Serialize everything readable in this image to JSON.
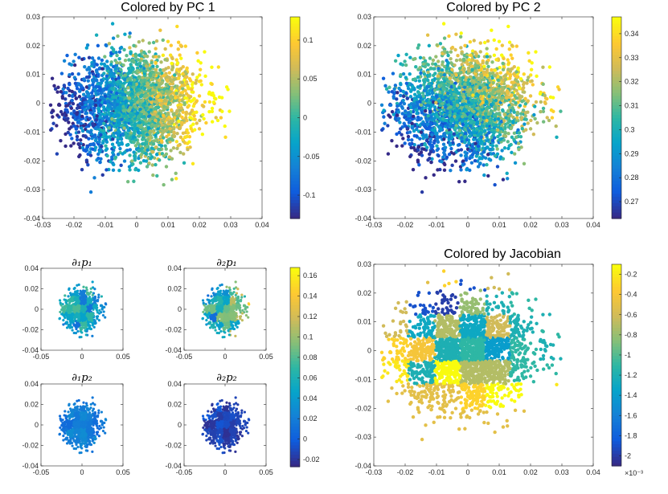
{
  "colors": {
    "parula": [
      "#352a87",
      "#0f5cdd",
      "#1481d6",
      "#06a4ca",
      "#2eb7a4",
      "#87bf77",
      "#d1bb59",
      "#fec832",
      "#f9fb0e"
    ]
  },
  "chart_data": [
    {
      "id": "pc1",
      "type": "scatter",
      "title": "Colored by PC 1",
      "xlim": [
        -0.03,
        0.04
      ],
      "ylim": [
        -0.04,
        0.03
      ],
      "xticks": [
        "-0.03",
        "-0.02",
        "-0.01",
        "0",
        "0.01",
        "0.02",
        "0.03",
        "0.04"
      ],
      "yticks": [
        "-0.04",
        "-0.03",
        "-0.02",
        "-0.01",
        "0",
        "0.01",
        "0.02",
        "0.03"
      ],
      "colorbar": {
        "clim": [
          -0.13,
          0.13
        ],
        "ticks": [
          "-0.1",
          "-0.05",
          "0",
          "0.05",
          "0.1"
        ]
      },
      "point_cloud": {
        "x_range": [
          -0.028,
          0.033
        ],
        "y_range": [
          -0.031,
          0.028
        ],
        "n_points": 2600
      },
      "coloring": "pc1"
    },
    {
      "id": "pc2",
      "type": "scatter",
      "title": "Colored by PC 2",
      "xlim": [
        -0.03,
        0.04
      ],
      "ylim": [
        -0.04,
        0.03
      ],
      "xticks": [
        "-0.03",
        "-0.02",
        "-0.01",
        "0",
        "0.01",
        "0.02",
        "0.03",
        "0.04"
      ],
      "yticks": [
        "-0.04",
        "-0.03",
        "-0.02",
        "-0.01",
        "0",
        "0.01",
        "0.02",
        "0.03"
      ],
      "colorbar": {
        "clim": [
          0.263,
          0.347
        ],
        "ticks": [
          "0.27",
          "0.28",
          "0.29",
          "0.3",
          "0.31",
          "0.32",
          "0.33",
          "0.34"
        ]
      },
      "point_cloud": {
        "x_range": [
          -0.028,
          0.033
        ],
        "y_range": [
          -0.031,
          0.028
        ],
        "n_points": 2600
      },
      "coloring": "pc2"
    },
    {
      "id": "d1p1",
      "type": "scatter",
      "title": "∂₁p₁",
      "xlim": [
        -0.05,
        0.05
      ],
      "ylim": [
        -0.04,
        0.04
      ],
      "xticks": [
        "-0.05",
        "0",
        "0.05"
      ],
      "yticks": [
        "-0.04",
        "-0.02",
        "0",
        "0.02",
        "0.04"
      ],
      "coloring": "d1p1",
      "shared_colorbar": "deriv_cb"
    },
    {
      "id": "d2p1",
      "type": "scatter",
      "title": "∂₂p₁",
      "xlim": [
        -0.05,
        0.05
      ],
      "ylim": [
        -0.04,
        0.04
      ],
      "xticks": [
        "-0.05",
        "0",
        "0.05"
      ],
      "yticks": [
        "-0.04",
        "-0.02",
        "0",
        "0.02",
        "0.04"
      ],
      "coloring": "d2p1",
      "shared_colorbar": "deriv_cb"
    },
    {
      "id": "d1p2",
      "type": "scatter",
      "title": "∂₁p₂",
      "xlim": [
        -0.05,
        0.05
      ],
      "ylim": [
        -0.04,
        0.04
      ],
      "xticks": [
        "-0.05",
        "0",
        "0.05"
      ],
      "yticks": [
        "-0.04",
        "-0.02",
        "0",
        "0.02",
        "0.04"
      ],
      "coloring": "d1p2",
      "shared_colorbar": "deriv_cb"
    },
    {
      "id": "d2p2",
      "type": "scatter",
      "title": "∂₂p₂",
      "xlim": [
        -0.05,
        0.05
      ],
      "ylim": [
        -0.04,
        0.04
      ],
      "xticks": [
        "-0.05",
        "0",
        "0.05"
      ],
      "yticks": [
        "-0.04",
        "-0.02",
        "0",
        "0.02",
        "0.04"
      ],
      "coloring": "d2p2",
      "shared_colorbar": "deriv_cb"
    },
    {
      "id": "jac",
      "type": "scatter",
      "title": "Colored by Jacobian",
      "xlim": [
        -0.03,
        0.04
      ],
      "ylim": [
        -0.04,
        0.03
      ],
      "xticks": [
        "-0.03",
        "-0.02",
        "-0.01",
        "0",
        "0.01",
        "0.02",
        "0.03",
        "0.04"
      ],
      "yticks": [
        "-0.04",
        "-0.03",
        "-0.02",
        "-0.01",
        "0",
        "0.01",
        "0.02",
        "0.03"
      ],
      "colorbar": {
        "clim": [
          -2.1,
          -0.1
        ],
        "ticks": [
          "-2",
          "-1.8",
          "-1.6",
          "-1.4",
          "-1.2",
          "-1",
          "-0.8",
          "-0.6",
          "-0.4",
          "-0.2"
        ],
        "exponent": "×10⁻³"
      },
      "coloring": "jacobian"
    }
  ],
  "deriv_cb": {
    "clim": [
      -0.027,
      0.168
    ],
    "ticks": [
      "-0.02",
      "0",
      "0.02",
      "0.04",
      "0.06",
      "0.08",
      "0.1",
      "0.12",
      "0.14",
      "0.16"
    ]
  },
  "jacobian_grid": {
    "x_edges": [
      -0.027,
      -0.019,
      -0.0105,
      -0.0025,
      0.0055,
      0.0135,
      0.022,
      0.032
    ],
    "y_edges": [
      -0.031,
      -0.0205,
      -0.0115,
      -0.0035,
      0.0045,
      0.0125,
      0.021,
      0.028
    ],
    "values_top_to_bottom": [
      [
        -0.4,
        -0.5,
        -0.3,
        -1.9,
        -0.6,
        -0.9,
        -0.9
      ],
      [
        -0.6,
        -1.9,
        -2.0,
        -0.8,
        -1.2,
        -1.1,
        -1.2
      ],
      [
        -0.6,
        -1.3,
        -0.7,
        -1.3,
        -0.6,
        -1.2,
        -1.1
      ],
      [
        -0.3,
        -0.4,
        -1.2,
        -1.1,
        -1.4,
        -1.1,
        -1.2
      ],
      [
        -0.2,
        -1.2,
        -0.1,
        -0.7,
        -0.7,
        -1.1,
        -1.1
      ],
      [
        -0.5,
        -0.5,
        -0.5,
        -0.3,
        -0.1,
        -0.1,
        -0.2
      ],
      [
        -0.5,
        -0.5,
        -0.5,
        -0.5,
        -0.5,
        -0.5,
        -0.5
      ]
    ]
  }
}
